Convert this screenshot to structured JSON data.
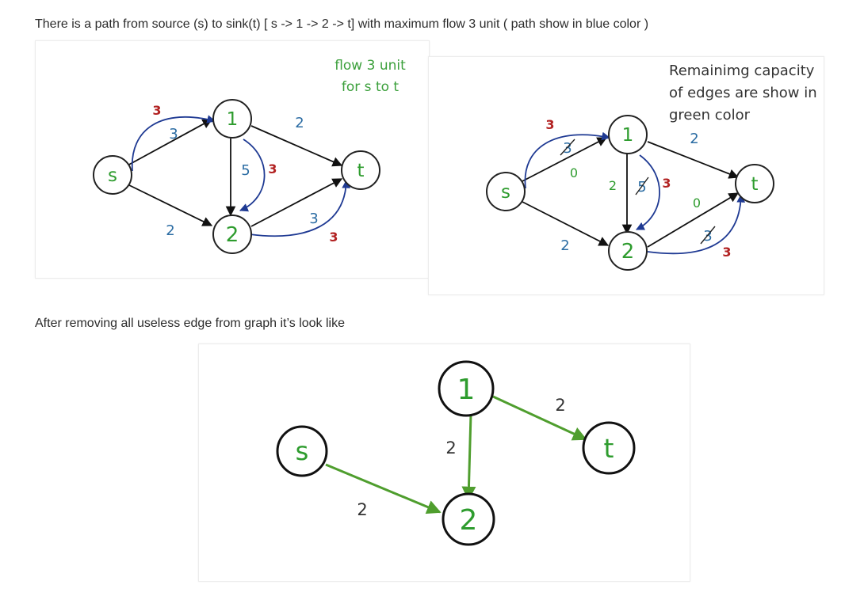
{
  "intro_text": "There is a path from source (s) to sink(t) [ s -> 1 -> 2 -> t] with maximum flow 3 unit ( path show in blue color )",
  "after_text": "After removing all useless edge from graph it’s look like",
  "colors": {
    "text": "#2c2c2c",
    "blue_path": "#1f3a93",
    "node_label_green": "#2e9c2e",
    "capacity_blue": "#2b6ca3",
    "flow_red": "#b22222",
    "note_green": "#3ca03c",
    "final_edge_green": "#4f9e2e"
  },
  "diagram1": {
    "note_line1": "flow 3 unit",
    "note_line2": "for s to t",
    "nodes": {
      "s": "s",
      "n1": "1",
      "n2": "2",
      "t": "t"
    },
    "edge_caps": {
      "s1": "3",
      "s2": "2",
      "n1n2": "5",
      "n1t": "2",
      "n2t": "3"
    },
    "flow_labels": {
      "s1": "3",
      "n1n2": "3",
      "n2t": "3"
    }
  },
  "diagram2": {
    "note_line1": "Remainimg capacity",
    "note_line2": "of edges are show in",
    "note_line3": "green color",
    "nodes": {
      "s": "s",
      "n1": "1",
      "n2": "2",
      "t": "t"
    },
    "struck_caps": {
      "s1": "3",
      "n1n2": "5",
      "n2t": "3"
    },
    "remaining": {
      "s1": "0",
      "n1n2": "2",
      "n2t": "0"
    },
    "edge_caps": {
      "s2": "2",
      "n1t": "2"
    },
    "flow_labels": {
      "s1": "3",
      "n1n2": "3",
      "n2t": "3"
    }
  },
  "diagram3": {
    "nodes": {
      "s": "s",
      "n1": "1",
      "n2": "2",
      "t": "t"
    },
    "edge_labels": {
      "s2": "2",
      "n1n2": "2",
      "n1t": "2"
    }
  }
}
